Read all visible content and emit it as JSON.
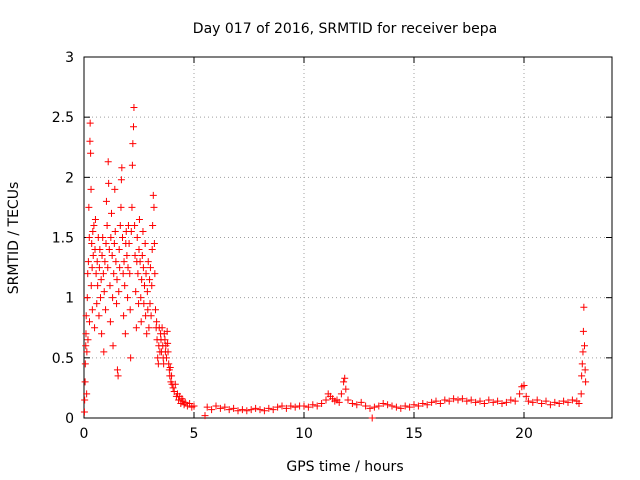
{
  "chart_data": {
    "type": "scatter",
    "title": "Day 017 of 2016, SRMTID for receiver bepa",
    "xlabel": "GPS time / hours",
    "ylabel": "SRMTID / TECUs",
    "xlim": [
      0,
      24
    ],
    "ylim": [
      0,
      3
    ],
    "xticks": [
      0,
      5,
      10,
      15,
      20
    ],
    "xtick_labels": [
      "0",
      "5",
      "10",
      "15",
      "20"
    ],
    "yticks": [
      0,
      0.5,
      1,
      1.5,
      2,
      2.5,
      3
    ],
    "ytick_labels": [
      "0",
      "0.5",
      "1",
      "1.5",
      "2",
      "2.5",
      "3"
    ],
    "grid": true,
    "marker": "+",
    "color": "#ff0000",
    "series": [
      {
        "name": "SRMTID",
        "points": [
          [
            0.02,
            0.05
          ],
          [
            0.03,
            0.15
          ],
          [
            0.05,
            0.3
          ],
          [
            0.06,
            0.45
          ],
          [
            0.08,
            0.6
          ],
          [
            0.09,
            0.7
          ],
          [
            0.1,
            0.85
          ],
          [
            0.12,
            0.2
          ],
          [
            0.13,
            0.55
          ],
          [
            0.15,
            1.0
          ],
          [
            0.17,
            1.2
          ],
          [
            0.18,
            0.65
          ],
          [
            0.2,
            1.3
          ],
          [
            0.22,
            1.75
          ],
          [
            0.24,
            1.5
          ],
          [
            0.25,
            0.8
          ],
          [
            0.27,
            2.3
          ],
          [
            0.28,
            2.45
          ],
          [
            0.3,
            2.2
          ],
          [
            0.32,
            1.9
          ],
          [
            0.33,
            1.1
          ],
          [
            0.35,
            1.45
          ],
          [
            0.37,
            1.25
          ],
          [
            0.38,
            0.9
          ],
          [
            0.4,
            1.55
          ],
          [
            0.42,
            1.35
          ],
          [
            0.45,
            1.6
          ],
          [
            0.48,
            0.75
          ],
          [
            0.5,
            1.4
          ],
          [
            0.52,
            1.65
          ],
          [
            0.55,
            1.2
          ],
          [
            0.58,
            0.95
          ],
          [
            0.6,
            1.3
          ],
          [
            0.62,
            1.1
          ],
          [
            0.65,
            1.5
          ],
          [
            0.68,
            0.85
          ],
          [
            0.7,
            1.25
          ],
          [
            0.72,
            1.4
          ],
          [
            0.75,
            1.0
          ],
          [
            0.78,
            1.15
          ],
          [
            0.8,
            0.7
          ],
          [
            0.82,
            1.35
          ],
          [
            0.85,
            1.5
          ],
          [
            0.88,
            1.2
          ],
          [
            0.9,
            0.55
          ],
          [
            0.92,
            1.05
          ],
          [
            0.95,
            1.3
          ],
          [
            0.98,
            0.9
          ],
          [
            1.0,
            1.45
          ],
          [
            1.02,
            1.8
          ],
          [
            1.05,
            1.6
          ],
          [
            1.08,
            1.25
          ],
          [
            1.1,
            2.13
          ],
          [
            1.12,
            1.95
          ],
          [
            1.15,
            1.4
          ],
          [
            1.18,
            1.1
          ],
          [
            1.2,
            0.8
          ],
          [
            1.22,
            1.5
          ],
          [
            1.25,
            1.7
          ],
          [
            1.28,
            1.35
          ],
          [
            1.3,
            1.0
          ],
          [
            1.32,
            0.6
          ],
          [
            1.35,
            1.2
          ],
          [
            1.38,
            1.45
          ],
          [
            1.4,
            1.9
          ],
          [
            1.42,
            1.55
          ],
          [
            1.45,
            1.3
          ],
          [
            1.48,
            0.95
          ],
          [
            1.5,
            1.15
          ],
          [
            1.52,
            0.4
          ],
          [
            1.55,
            0.35
          ],
          [
            1.58,
            1.05
          ],
          [
            1.6,
            1.4
          ],
          [
            1.62,
            1.25
          ],
          [
            1.65,
            1.6
          ],
          [
            1.68,
            1.75
          ],
          [
            1.7,
            1.98
          ],
          [
            1.72,
            2.08
          ],
          [
            1.75,
            1.5
          ],
          [
            1.78,
            1.2
          ],
          [
            1.8,
            0.85
          ],
          [
            1.82,
            1.3
          ],
          [
            1.85,
            1.1
          ],
          [
            1.88,
            0.7
          ],
          [
            1.9,
            1.45
          ],
          [
            1.92,
            1.55
          ],
          [
            1.95,
            1.35
          ],
          [
            1.98,
            1.0
          ],
          [
            2.0,
            1.25
          ],
          [
            2.02,
            1.6
          ],
          [
            2.05,
            1.45
          ],
          [
            2.08,
            1.2
          ],
          [
            2.1,
            0.9
          ],
          [
            2.12,
            0.5
          ],
          [
            2.15,
            1.55
          ],
          [
            2.18,
            1.75
          ],
          [
            2.2,
            2.1
          ],
          [
            2.22,
            2.28
          ],
          [
            2.25,
            2.42
          ],
          [
            2.27,
            2.58
          ],
          [
            2.3,
            1.6
          ],
          [
            2.32,
            1.35
          ],
          [
            2.35,
            1.05
          ],
          [
            2.38,
            0.75
          ],
          [
            2.4,
            1.3
          ],
          [
            2.42,
            1.5
          ],
          [
            2.45,
            1.2
          ],
          [
            2.48,
            0.95
          ],
          [
            2.5,
            1.4
          ],
          [
            2.52,
            1.65
          ],
          [
            2.55,
            1.3
          ],
          [
            2.58,
            1.0
          ],
          [
            2.6,
            0.8
          ],
          [
            2.62,
            1.15
          ],
          [
            2.65,
            1.35
          ],
          [
            2.68,
            1.55
          ],
          [
            2.7,
            1.25
          ],
          [
            2.72,
            0.95
          ],
          [
            2.75,
            1.1
          ],
          [
            2.78,
            1.45
          ],
          [
            2.8,
            0.85
          ],
          [
            2.82,
            1.2
          ],
          [
            2.85,
            0.7
          ],
          [
            2.88,
            1.05
          ],
          [
            2.9,
            0.9
          ],
          [
            2.92,
            1.3
          ],
          [
            2.95,
            0.75
          ],
          [
            2.98,
            1.15
          ],
          [
            3.0,
            0.95
          ],
          [
            3.02,
            1.25
          ],
          [
            3.05,
            0.85
          ],
          [
            3.08,
            1.1
          ],
          [
            3.1,
            1.4
          ],
          [
            3.12,
            1.6
          ],
          [
            3.15,
            1.85
          ],
          [
            3.18,
            1.75
          ],
          [
            3.2,
            1.45
          ],
          [
            3.22,
            1.2
          ],
          [
            3.25,
            0.9
          ],
          [
            3.28,
            0.75
          ],
          [
            3.3,
            0.8
          ],
          [
            3.32,
            0.65
          ],
          [
            3.35,
            0.5
          ],
          [
            3.38,
            0.45
          ],
          [
            3.4,
            0.6
          ],
          [
            3.42,
            0.75
          ],
          [
            3.45,
            0.55
          ],
          [
            3.48,
            0.7
          ],
          [
            3.5,
            0.65
          ],
          [
            3.52,
            0.55
          ],
          [
            3.55,
            0.75
          ],
          [
            3.58,
            0.6
          ],
          [
            3.6,
            0.5
          ],
          [
            3.62,
            0.45
          ],
          [
            3.65,
            0.7
          ],
          [
            3.68,
            0.65
          ],
          [
            3.7,
            0.55
          ],
          [
            3.72,
            0.6
          ],
          [
            3.75,
            0.5
          ],
          [
            3.78,
            0.72
          ],
          [
            3.8,
            0.62
          ],
          [
            3.82,
            0.55
          ],
          [
            3.85,
            0.45
          ],
          [
            3.88,
            0.4
          ],
          [
            3.9,
            0.35
          ],
          [
            3.92,
            0.42
          ],
          [
            3.95,
            0.3
          ],
          [
            3.98,
            0.35
          ],
          [
            4.0,
            0.28
          ],
          [
            4.05,
            0.25
          ],
          [
            4.1,
            0.22
          ],
          [
            4.15,
            0.28
          ],
          [
            4.2,
            0.18
          ],
          [
            4.25,
            0.2
          ],
          [
            4.3,
            0.15
          ],
          [
            4.35,
            0.18
          ],
          [
            4.4,
            0.12
          ],
          [
            4.45,
            0.16
          ],
          [
            4.5,
            0.14
          ],
          [
            4.55,
            0.11
          ],
          [
            4.6,
            0.13
          ],
          [
            4.7,
            0.1
          ],
          [
            4.8,
            0.12
          ],
          [
            4.9,
            0.09
          ],
          [
            5.0,
            0.1
          ],
          [
            5.5,
            0.02
          ],
          [
            5.6,
            0.09
          ],
          [
            5.8,
            0.07
          ],
          [
            6.0,
            0.1
          ],
          [
            6.2,
            0.08
          ],
          [
            6.4,
            0.09
          ],
          [
            6.6,
            0.07
          ],
          [
            6.8,
            0.08
          ],
          [
            7.0,
            0.06
          ],
          [
            7.2,
            0.07
          ],
          [
            7.4,
            0.06
          ],
          [
            7.6,
            0.07
          ],
          [
            7.8,
            0.08
          ],
          [
            8.0,
            0.07
          ],
          [
            8.2,
            0.06
          ],
          [
            8.4,
            0.08
          ],
          [
            8.6,
            0.07
          ],
          [
            8.8,
            0.09
          ],
          [
            9.0,
            0.1
          ],
          [
            9.2,
            0.08
          ],
          [
            9.4,
            0.1
          ],
          [
            9.6,
            0.09
          ],
          [
            9.8,
            0.1
          ],
          [
            10.0,
            0.1
          ],
          [
            10.2,
            0.09
          ],
          [
            10.4,
            0.11
          ],
          [
            10.6,
            0.1
          ],
          [
            10.8,
            0.12
          ],
          [
            11.0,
            0.15
          ],
          [
            11.1,
            0.2
          ],
          [
            11.2,
            0.18
          ],
          [
            11.3,
            0.16
          ],
          [
            11.4,
            0.14
          ],
          [
            11.5,
            0.15
          ],
          [
            11.6,
            0.13
          ],
          [
            11.7,
            0.2
          ],
          [
            11.8,
            0.3
          ],
          [
            11.85,
            0.33
          ],
          [
            11.9,
            0.24
          ],
          [
            12.0,
            0.15
          ],
          [
            12.2,
            0.12
          ],
          [
            12.4,
            0.11
          ],
          [
            12.6,
            0.13
          ],
          [
            12.8,
            0.1
          ],
          [
            13.0,
            0.08
          ],
          [
            13.1,
            0.0
          ],
          [
            13.2,
            0.09
          ],
          [
            13.4,
            0.1
          ],
          [
            13.6,
            0.12
          ],
          [
            13.8,
            0.11
          ],
          [
            14.0,
            0.1
          ],
          [
            14.2,
            0.09
          ],
          [
            14.4,
            0.08
          ],
          [
            14.6,
            0.1
          ],
          [
            14.8,
            0.09
          ],
          [
            15.0,
            0.11
          ],
          [
            15.2,
            0.1
          ],
          [
            15.4,
            0.12
          ],
          [
            15.6,
            0.11
          ],
          [
            15.8,
            0.13
          ],
          [
            16.0,
            0.14
          ],
          [
            16.2,
            0.12
          ],
          [
            16.4,
            0.15
          ],
          [
            16.6,
            0.14
          ],
          [
            16.8,
            0.16
          ],
          [
            17.0,
            0.15
          ],
          [
            17.2,
            0.16
          ],
          [
            17.4,
            0.14
          ],
          [
            17.6,
            0.15
          ],
          [
            17.8,
            0.13
          ],
          [
            18.0,
            0.14
          ],
          [
            18.2,
            0.12
          ],
          [
            18.4,
            0.15
          ],
          [
            18.6,
            0.13
          ],
          [
            18.8,
            0.14
          ],
          [
            19.0,
            0.12
          ],
          [
            19.2,
            0.13
          ],
          [
            19.4,
            0.15
          ],
          [
            19.6,
            0.14
          ],
          [
            19.8,
            0.2
          ],
          [
            19.9,
            0.26
          ],
          [
            20.0,
            0.27
          ],
          [
            20.1,
            0.18
          ],
          [
            20.2,
            0.14
          ],
          [
            20.4,
            0.13
          ],
          [
            20.6,
            0.15
          ],
          [
            20.8,
            0.12
          ],
          [
            21.0,
            0.14
          ],
          [
            21.2,
            0.11
          ],
          [
            21.4,
            0.13
          ],
          [
            21.6,
            0.12
          ],
          [
            21.8,
            0.14
          ],
          [
            22.0,
            0.13
          ],
          [
            22.2,
            0.15
          ],
          [
            22.4,
            0.14
          ],
          [
            22.5,
            0.12
          ],
          [
            22.6,
            0.2
          ],
          [
            22.62,
            0.35
          ],
          [
            22.65,
            0.45
          ],
          [
            22.68,
            0.55
          ],
          [
            22.7,
            0.72
          ],
          [
            22.72,
            0.92
          ],
          [
            22.75,
            0.6
          ],
          [
            22.78,
            0.4
          ],
          [
            22.8,
            0.3
          ]
        ]
      }
    ]
  }
}
